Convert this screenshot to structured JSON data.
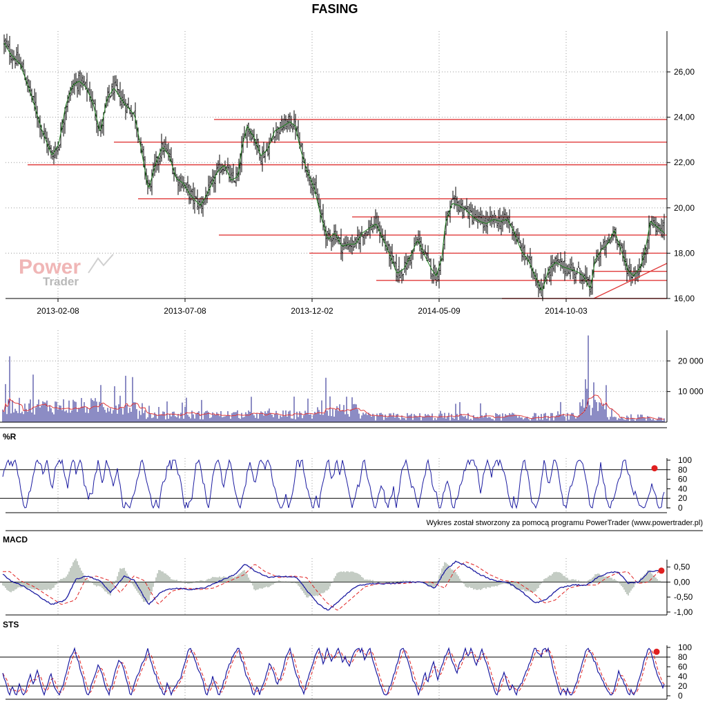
{
  "chart_data": [
    {
      "type": "candlestick",
      "panel": "price",
      "title": "FASING",
      "ylim": [
        16,
        27.8
      ],
      "yticks": [
        "26,00",
        "24,00",
        "22,00",
        "20,00",
        "18,00",
        "16,00"
      ],
      "ytick_values": [
        26,
        24,
        22,
        20,
        18,
        16
      ],
      "xticks": [
        "2013-02-08",
        "2013-07-08",
        "2013-12-02",
        "2014-05-09",
        "2014-10-03"
      ],
      "close_path": [
        [
          0,
          27.6
        ],
        [
          15,
          26.8
        ],
        [
          30,
          26.3
        ],
        [
          45,
          25.0
        ],
        [
          60,
          23.5
        ],
        [
          75,
          22.3
        ],
        [
          85,
          22.8
        ],
        [
          95,
          24.5
        ],
        [
          105,
          25.4
        ],
        [
          115,
          25.6
        ],
        [
          125,
          25.3
        ],
        [
          135,
          24.6
        ],
        [
          145,
          23.3
        ],
        [
          155,
          24.8
        ],
        [
          165,
          25.3
        ],
        [
          180,
          24.6
        ],
        [
          195,
          24.1
        ],
        [
          205,
          22.5
        ],
        [
          215,
          20.8
        ],
        [
          225,
          21.9
        ],
        [
          235,
          22.7
        ],
        [
          245,
          22.3
        ],
        [
          255,
          21.3
        ],
        [
          265,
          21.1
        ],
        [
          275,
          20.6
        ],
        [
          290,
          20.1
        ],
        [
          300,
          20.6
        ],
        [
          315,
          21.6
        ],
        [
          325,
          21.9
        ],
        [
          335,
          21.2
        ],
        [
          345,
          21.4
        ],
        [
          350,
          22.6
        ],
        [
          358,
          23.6
        ],
        [
          368,
          23.1
        ],
        [
          378,
          22.3
        ],
        [
          388,
          22.6
        ],
        [
          398,
          23.4
        ],
        [
          410,
          23.6
        ],
        [
          420,
          23.8
        ],
        [
          428,
          23.6
        ],
        [
          435,
          22.6
        ],
        [
          445,
          21.6
        ],
        [
          455,
          20.9
        ],
        [
          465,
          19.6
        ],
        [
          475,
          18.6
        ],
        [
          485,
          18.9
        ],
        [
          495,
          18.3
        ],
        [
          505,
          18.4
        ],
        [
          515,
          18.4
        ],
        [
          525,
          18.9
        ],
        [
          535,
          19.1
        ],
        [
          545,
          19.3
        ],
        [
          555,
          18.6
        ],
        [
          565,
          17.9
        ],
        [
          575,
          17.1
        ],
        [
          585,
          17.3
        ],
        [
          595,
          17.9
        ],
        [
          605,
          18.6
        ],
        [
          615,
          17.9
        ],
        [
          625,
          17.3
        ],
        [
          632,
          17.0
        ],
        [
          640,
          17.8
        ],
        [
          645,
          19.3
        ],
        [
          655,
          20.2
        ],
        [
          665,
          20.1
        ],
        [
          675,
          19.9
        ],
        [
          685,
          19.6
        ],
        [
          695,
          19.4
        ],
        [
          705,
          19.3
        ],
        [
          715,
          19.5
        ],
        [
          725,
          19.4
        ],
        [
          735,
          19.5
        ],
        [
          745,
          18.9
        ],
        [
          755,
          18.1
        ],
        [
          765,
          17.7
        ],
        [
          775,
          17.0
        ],
        [
          785,
          16.3
        ],
        [
          795,
          17.3
        ],
        [
          805,
          17.6
        ],
        [
          815,
          17.4
        ],
        [
          825,
          17.3
        ],
        [
          835,
          17.2
        ],
        [
          845,
          17.0
        ],
        [
          855,
          16.4
        ],
        [
          862,
          17.7
        ],
        [
          870,
          18.1
        ],
        [
          880,
          18.4
        ],
        [
          890,
          19.0
        ],
        [
          900,
          18.1
        ],
        [
          910,
          17.2
        ],
        [
          918,
          17.0
        ],
        [
          928,
          17.4
        ],
        [
          935,
          18.2
        ],
        [
          942,
          19.4
        ],
        [
          950,
          19.2
        ],
        [
          962,
          18.9
        ]
      ],
      "support_resistance_lines": [
        {
          "from": 310,
          "to": 966,
          "y": 23.9
        },
        {
          "from": 165,
          "to": 966,
          "y": 22.9
        },
        {
          "from": 40,
          "to": 966,
          "y": 21.9
        },
        {
          "from": 200,
          "to": 966,
          "y": 20.4
        },
        {
          "from": 510,
          "to": 966,
          "y": 19.6
        },
        {
          "from": 317,
          "to": 966,
          "y": 18.8
        },
        {
          "from": 448,
          "to": 966,
          "y": 18.0
        },
        {
          "from": 860,
          "to": 966,
          "y": 17.2
        },
        {
          "from": 545,
          "to": 966,
          "y": 16.8
        },
        {
          "from": 727,
          "to": 966,
          "y": 16.0
        }
      ],
      "trend_lines": [
        {
          "x1": 860,
          "y1": 16.0,
          "x2": 966,
          "y2": 17.55
        }
      ],
      "colors": {
        "candles": "#000000",
        "average": "#1a7a1a",
        "levels": "#e03a3a"
      },
      "watermark": {
        "word1": "Power",
        "word2": "Trader"
      }
    },
    {
      "type": "bar",
      "panel": "volume",
      "ylim": [
        0,
        30000
      ],
      "yticks": [
        "20 000",
        "10 000"
      ],
      "ytick_values": [
        20000,
        10000
      ],
      "spikes": [
        [
          14,
          21500
        ],
        [
          315,
          24800
        ],
        [
          472,
          14500
        ],
        [
          852,
          28300
        ],
        [
          848,
          14000
        ],
        [
          860,
          13000
        ]
      ],
      "colors": {
        "bars": "#1a1a8a",
        "average": "#e03a3a"
      }
    },
    {
      "type": "line",
      "panel": "williams",
      "label": "%R",
      "ylim": [
        0,
        100
      ],
      "yticks": [
        "100",
        "80",
        "60",
        "40",
        "20",
        "0"
      ],
      "ytick_values": [
        100,
        80,
        60,
        40,
        20,
        0
      ],
      "reference_lines": [
        80,
        20
      ],
      "last_value": 83,
      "colors": {
        "line": "#1a1aa0",
        "marker": "#e02020"
      }
    },
    {
      "type": "line",
      "panel": "macd",
      "label": "MACD",
      "ylim": [
        -1.05,
        0.7
      ],
      "yticks": [
        "0,50",
        "0,00",
        "-0,50",
        "-1,00"
      ],
      "ytick_values": [
        0.5,
        0,
        -0.5,
        -1.0
      ],
      "macd_path": [
        [
          0,
          0.35
        ],
        [
          15,
          0.05
        ],
        [
          35,
          -0.15
        ],
        [
          55,
          -0.45
        ],
        [
          75,
          -0.75
        ],
        [
          95,
          -0.6
        ],
        [
          110,
          0.1
        ],
        [
          125,
          0.2
        ],
        [
          145,
          0.05
        ],
        [
          160,
          -0.35
        ],
        [
          180,
          0.2
        ],
        [
          195,
          0.05
        ],
        [
          215,
          -0.75
        ],
        [
          235,
          -0.3
        ],
        [
          255,
          -0.2
        ],
        [
          275,
          -0.25
        ],
        [
          295,
          -0.2
        ],
        [
          320,
          0.05
        ],
        [
          340,
          0.25
        ],
        [
          355,
          0.6
        ],
        [
          370,
          0.35
        ],
        [
          390,
          0.15
        ],
        [
          410,
          0.2
        ],
        [
          430,
          0.15
        ],
        [
          445,
          -0.3
        ],
        [
          460,
          -0.7
        ],
        [
          475,
          -0.95
        ],
        [
          495,
          -0.55
        ],
        [
          515,
          -0.15
        ],
        [
          535,
          -0.05
        ],
        [
          550,
          -0.05
        ],
        [
          570,
          -0.05
        ],
        [
          590,
          0.0
        ],
        [
          610,
          0.0
        ],
        [
          630,
          -0.2
        ],
        [
          645,
          0.4
        ],
        [
          660,
          0.68
        ],
        [
          675,
          0.55
        ],
        [
          695,
          0.25
        ],
        [
          715,
          0.05
        ],
        [
          735,
          0.0
        ],
        [
          755,
          -0.3
        ],
        [
          775,
          -0.7
        ],
        [
          790,
          -0.6
        ],
        [
          810,
          -0.2
        ],
        [
          830,
          -0.1
        ],
        [
          850,
          -0.1
        ],
        [
          865,
          0.15
        ],
        [
          880,
          0.3
        ],
        [
          895,
          0.35
        ],
        [
          910,
          -0.05
        ],
        [
          925,
          0.0
        ],
        [
          940,
          0.35
        ],
        [
          957,
          0.4
        ]
      ],
      "last_value": 0.38,
      "colors": {
        "macd": "#1a1aa0",
        "signal": "#e02020",
        "histogram": "#8a9a8a",
        "marker": "#e02020"
      }
    },
    {
      "type": "line",
      "panel": "stochastic",
      "label": "STS",
      "ylim": [
        0,
        100
      ],
      "yticks": [
        "100",
        "80",
        "60",
        "40",
        "20",
        "0"
      ],
      "ytick_values": [
        100,
        80,
        60,
        40,
        20,
        0
      ],
      "reference_lines": [
        80,
        20
      ],
      "last_value": 91,
      "colors": {
        "k": "#1a1aa0",
        "d": "#e02020",
        "marker": "#e02020"
      }
    }
  ],
  "footer": "Wykres został stworzony za pomocą programu PowerTrader (www.powertrader.pl)"
}
